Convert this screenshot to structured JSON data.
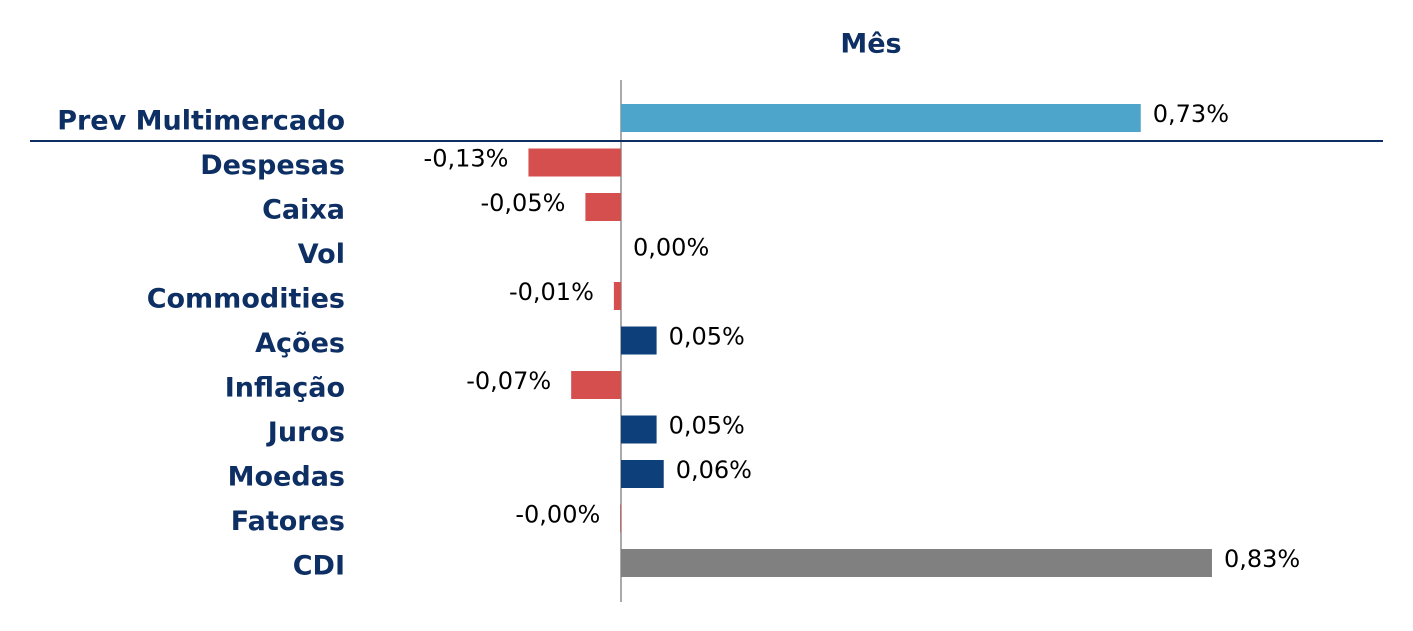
{
  "chart_data": {
    "type": "bar",
    "orientation": "horizontal",
    "title": "Mês",
    "categories": [
      "Prev Multimercado",
      "Despesas",
      "Caixa",
      "Vol",
      "Commodities",
      "Ações",
      "Inflação",
      "Juros",
      "Moedas",
      "Fatores",
      "CDI"
    ],
    "values": [
      0.73,
      -0.13,
      -0.05,
      0,
      -0.01,
      0.05,
      -0.07,
      0.05,
      0.06,
      -0.001,
      0.83
    ],
    "value_labels": [
      "0,73%",
      "-0,13%",
      "-0,05%",
      "0,00%",
      "-0,01%",
      "0,05%",
      "-0,07%",
      "0,05%",
      "0,06%",
      "-0,00%",
      "0,83%"
    ],
    "colors": [
      "#4ea5cb",
      "#d64f4f",
      "#d64f4f",
      "#0d3f7a",
      "#d64f4f",
      "#0d3f7a",
      "#d64f4f",
      "#0d3f7a",
      "#0d3f7a",
      "#d64f4f",
      "#808080"
    ]
  }
}
